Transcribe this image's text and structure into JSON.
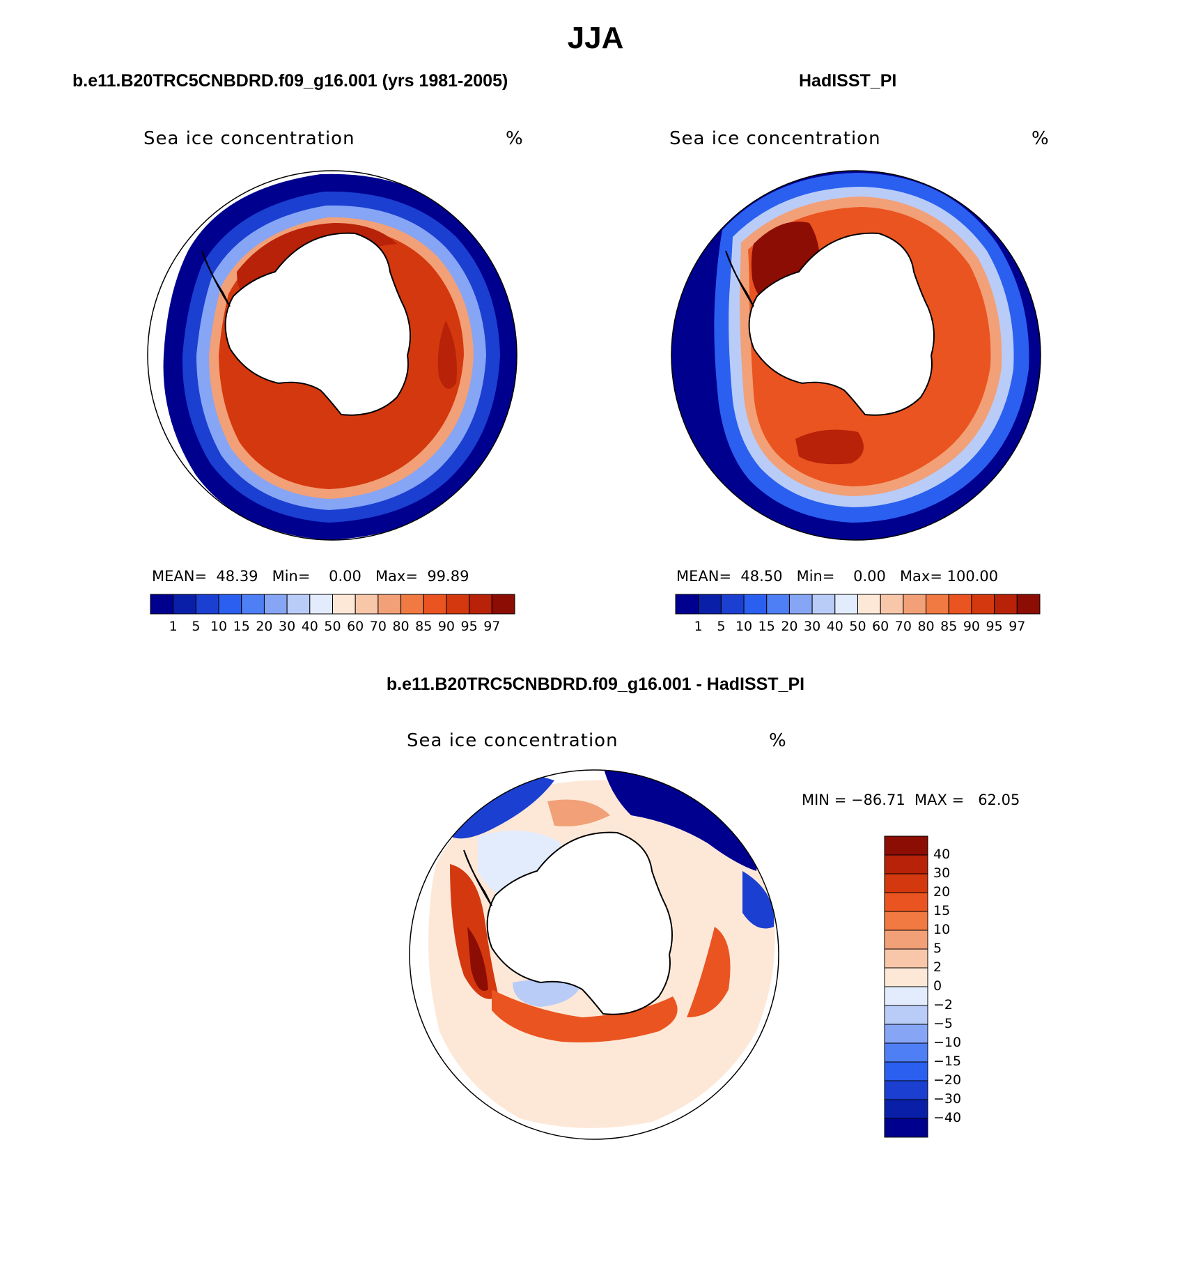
{
  "title": "JJA",
  "panels": [
    {
      "case_title": "b.e11.B20TRC5CNBDRD.f09_g16.001 (yrs 1981-2005)",
      "field_label": "Sea ice concentration",
      "units": "%",
      "stats": {
        "mean_label": "MEAN=",
        "mean": "48.39",
        "min_label": "Min=",
        "min": "0.00",
        "max_label": "Max=",
        "max": "99.89"
      }
    },
    {
      "case_title": "HadISST_PI",
      "field_label": "Sea ice concentration",
      "units": "%",
      "stats": {
        "mean_label": "MEAN=",
        "mean": "48.50",
        "min_label": "Min=",
        "min": "0.00",
        "max_label": "Max=",
        "max": "100.00"
      }
    }
  ],
  "diff_panel": {
    "case_title": "b.e11.B20TRC5CNBDRD.f09_g16.001 - HadISST_PI",
    "field_label": "Sea ice concentration",
    "units": "%",
    "min_max_text": "MIN = −86.71  MAX =   62.05"
  },
  "colorbar_main": {
    "labels": [
      "1",
      "5",
      "10",
      "15",
      "20",
      "30",
      "40",
      "50",
      "60",
      "70",
      "80",
      "85",
      "90",
      "95",
      "97"
    ],
    "colors": [
      "#00008f",
      "#0a1fa8",
      "#1b3fd0",
      "#2a5ff0",
      "#4f7ff5",
      "#86a5f5",
      "#b9ccf8",
      "#e3ecfc",
      "#fde8d8",
      "#f8c6a9",
      "#f2a077",
      "#f07a42",
      "#ea5420",
      "#d4380e",
      "#b72208",
      "#8c0d04"
    ]
  },
  "colorbar_diff": {
    "labels": [
      "40",
      "30",
      "20",
      "15",
      "10",
      "5",
      "2",
      "0",
      "−2",
      "−5",
      "−10",
      "−15",
      "−20",
      "−30",
      "−40"
    ],
    "colors": [
      "#8c0d04",
      "#b72208",
      "#d4380e",
      "#ea5420",
      "#f07a42",
      "#f2a077",
      "#f8c6a9",
      "#fde8d8",
      "#e3ecfc",
      "#b9ccf8",
      "#86a5f5",
      "#4f7ff5",
      "#2a5ff0",
      "#1b3fd0",
      "#0a1fa8",
      "#00008f"
    ]
  }
}
